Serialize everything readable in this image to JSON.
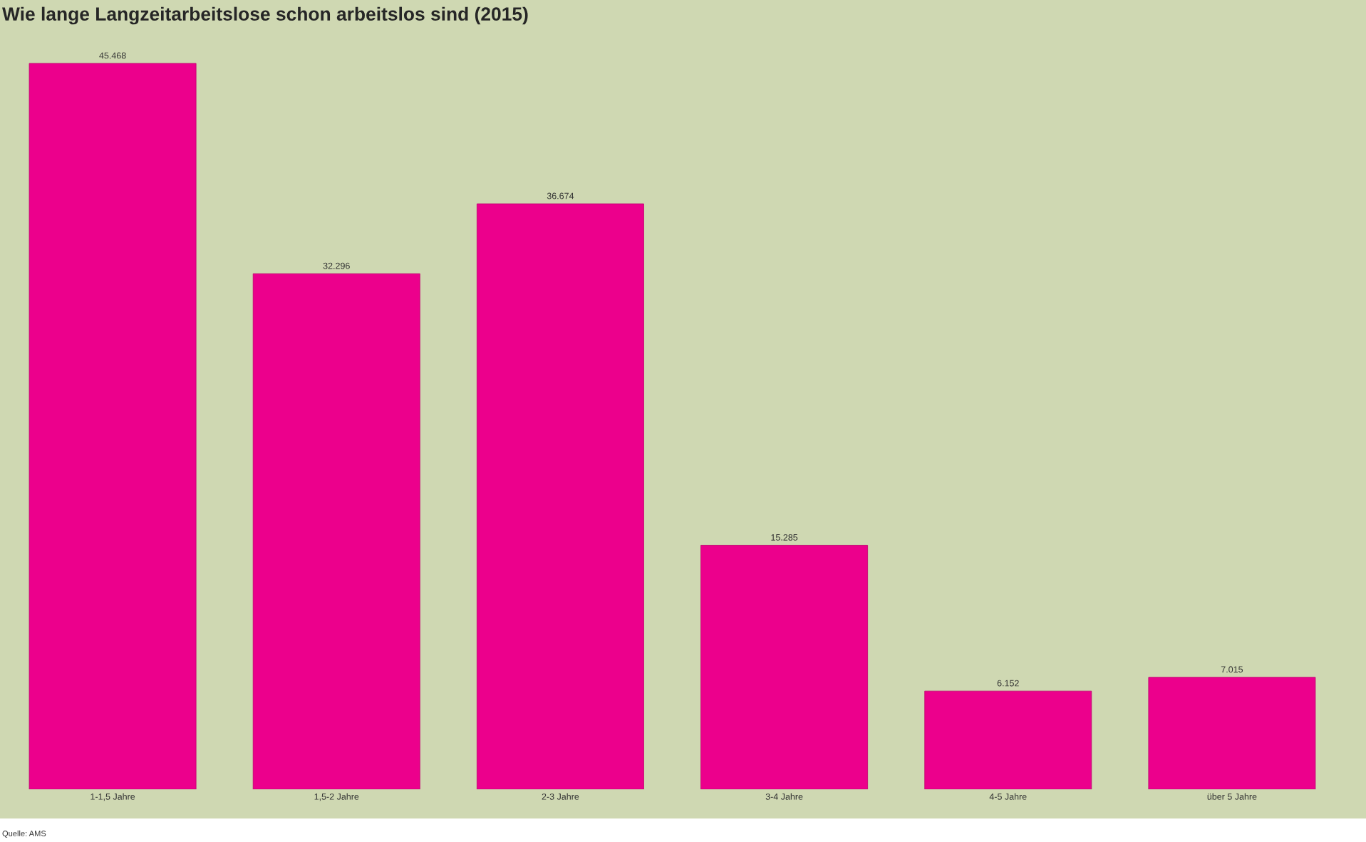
{
  "chart_data": {
    "type": "bar",
    "title": "Wie lange Langzeitarbeitslose schon arbeitslos sind (2015)",
    "categories": [
      "1-1,5 Jahre",
      "1,5-2 Jahre",
      "2-3 Jahre",
      "3-4 Jahre",
      "4-5 Jahre",
      "über 5 Jahre"
    ],
    "values": [
      45468,
      32296,
      36674,
      15285,
      6152,
      7015
    ],
    "value_labels": [
      "45.468",
      "32.296",
      "36.674",
      "15.285",
      "6.152",
      "7.015"
    ],
    "color": "#ec008c",
    "tick_labels": "x",
    "annotations": [
      "Quelle: AMS"
    ]
  }
}
